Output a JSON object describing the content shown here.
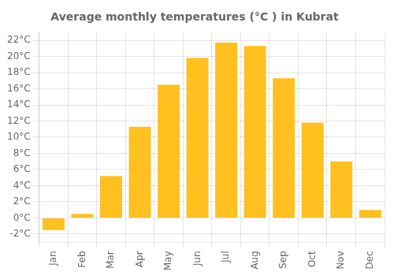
{
  "chart_data": {
    "type": "bar",
    "title": "Average monthly temperatures (°C ) in Kubrat",
    "categories": [
      "Jan",
      "Feb",
      "Mar",
      "Apr",
      "May",
      "Jun",
      "Jul",
      "Aug",
      "Sep",
      "Oct",
      "Nov",
      "Dec"
    ],
    "values": [
      -1.5,
      0.5,
      5.2,
      11.3,
      16.5,
      19.8,
      21.7,
      21.3,
      17.3,
      11.8,
      7.0,
      1.0
    ],
    "color": "#FFC020",
    "ylim": [
      -3,
      23
    ],
    "yticks": [
      {
        "value": -2,
        "label": "-2°C"
      },
      {
        "value": 0,
        "label": "0°C"
      },
      {
        "value": 2,
        "label": "2°C"
      },
      {
        "value": 4,
        "label": "4°C"
      },
      {
        "value": 6,
        "label": "6°C"
      },
      {
        "value": 8,
        "label": "8°C"
      },
      {
        "value": 10,
        "label": "10°C"
      },
      {
        "value": 12,
        "label": "12°C"
      },
      {
        "value": 14,
        "label": "14°C"
      },
      {
        "value": 16,
        "label": "16°C"
      },
      {
        "value": 18,
        "label": "18°C"
      },
      {
        "value": 20,
        "label": "20°C"
      },
      {
        "value": 22,
        "label": "22°C"
      }
    ],
    "grid": true
  }
}
